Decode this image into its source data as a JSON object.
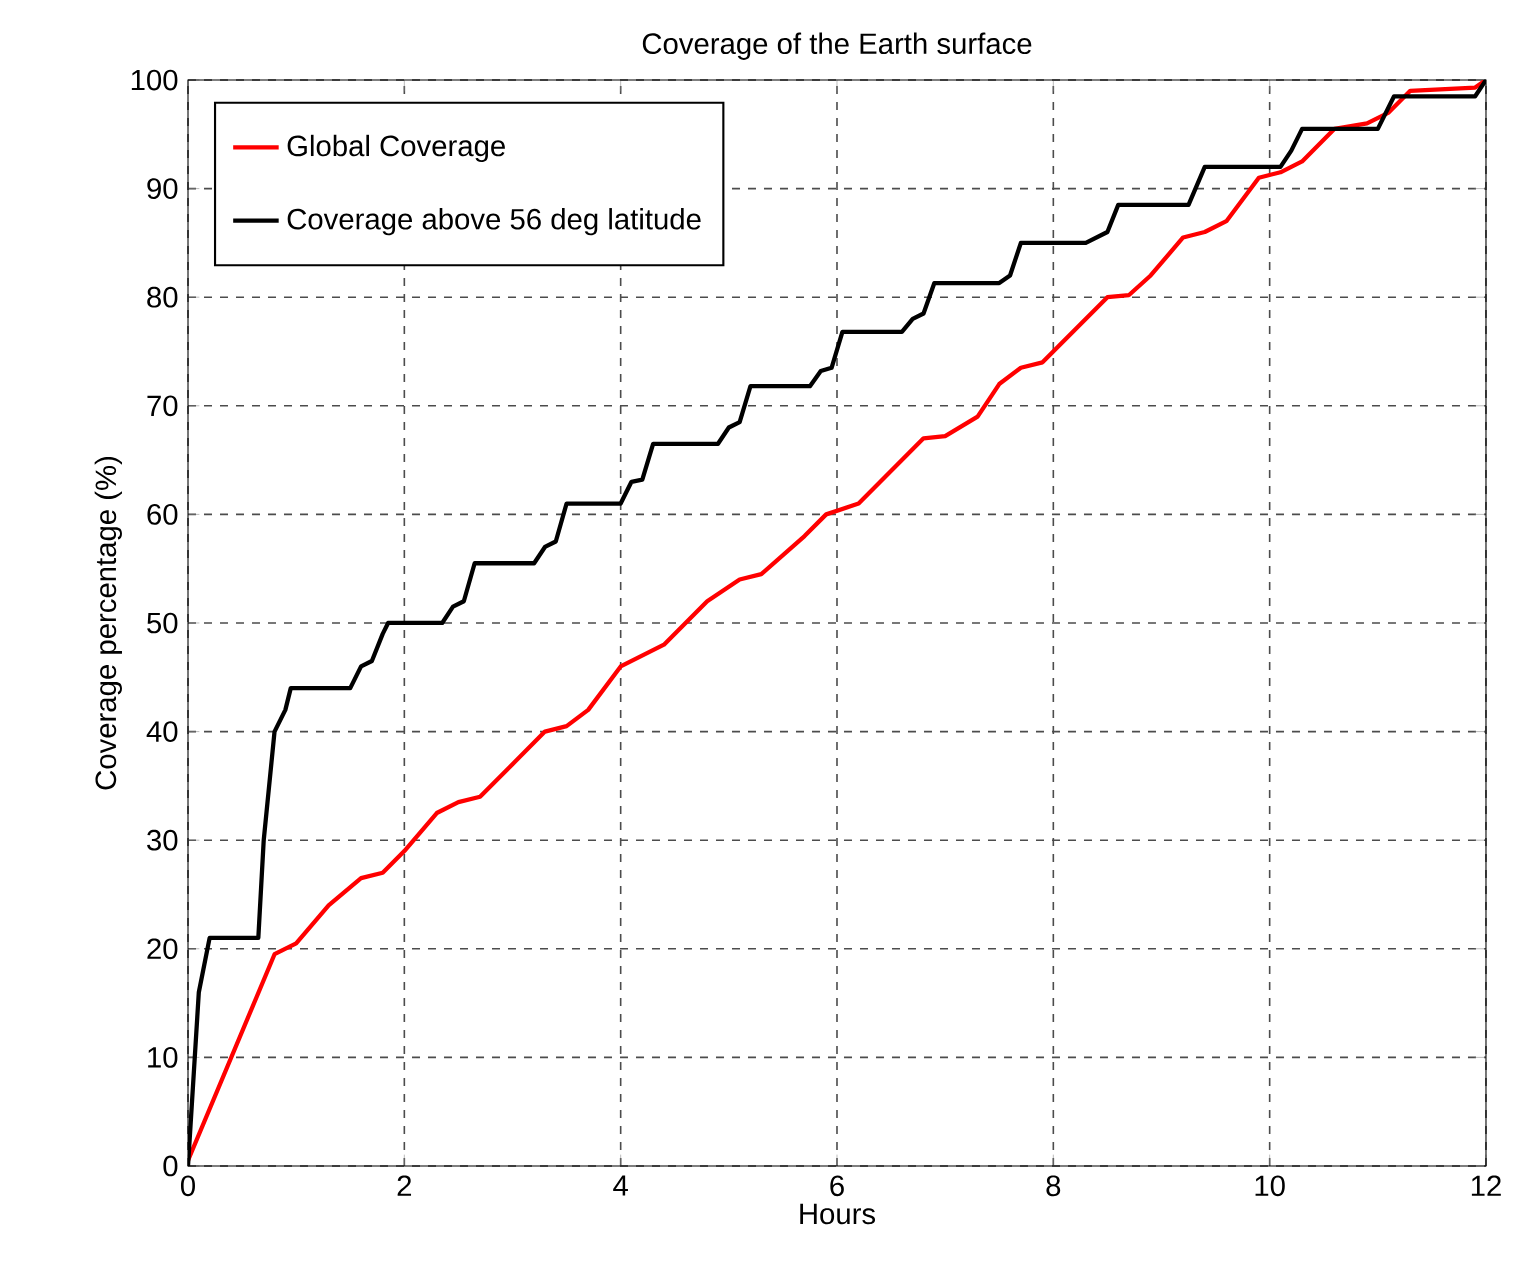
{
  "chart_data": {
    "type": "line",
    "title": "Coverage of the Earth surface",
    "xlabel": "Hours",
    "ylabel": "Coverage percentage (%)",
    "xlim": [
      0,
      12
    ],
    "ylim": [
      0,
      100
    ],
    "xticks": [
      0,
      2,
      4,
      6,
      8,
      10,
      12
    ],
    "yticks": [
      0,
      10,
      20,
      30,
      40,
      50,
      60,
      70,
      80,
      90,
      100
    ],
    "grid": true,
    "legend": "top left",
    "marker": "none",
    "line_style": "solid",
    "series": [
      {
        "name": "Global Coverage",
        "color": "#ff0000",
        "x": [
          0,
          0.8,
          1.0,
          1.3,
          1.6,
          1.8,
          2.0,
          2.3,
          2.5,
          2.7,
          3.0,
          3.3,
          3.5,
          3.7,
          4.0,
          4.2,
          4.4,
          4.8,
          5.1,
          5.3,
          5.7,
          5.9,
          6.2,
          6.5,
          6.8,
          7.0,
          7.3,
          7.5,
          7.7,
          7.9,
          8.2,
          8.5,
          8.7,
          8.9,
          9.2,
          9.4,
          9.6,
          9.9,
          10.1,
          10.3,
          10.6,
          10.9,
          11.1,
          11.3,
          11.9,
          12
        ],
        "values": [
          0.5,
          19.5,
          20.5,
          24,
          26.5,
          27,
          29,
          32.5,
          33.5,
          34,
          37,
          40,
          40.5,
          42,
          46,
          47,
          48,
          52,
          54,
          54.5,
          58,
          60,
          61,
          64,
          67,
          67.2,
          69,
          72,
          73.5,
          74,
          77,
          80,
          80.2,
          82,
          85.5,
          86,
          87,
          91,
          91.5,
          92.5,
          95.5,
          96,
          97,
          99,
          99.3,
          100
        ]
      },
      {
        "name": "Coverage above 56 deg latitude",
        "color": "#000000",
        "x": [
          0,
          0.1,
          0.2,
          0.65,
          0.7,
          0.8,
          0.9,
          0.95,
          1.5,
          1.6,
          1.7,
          1.8,
          1.85,
          2.35,
          2.45,
          2.55,
          2.65,
          3.2,
          3.3,
          3.4,
          3.5,
          4.0,
          4.1,
          4.2,
          4.3,
          4.9,
          5.0,
          5.1,
          5.2,
          5.75,
          5.85,
          5.95,
          6.05,
          6.6,
          6.7,
          6.8,
          6.9,
          7.5,
          7.6,
          7.7,
          8.3,
          8.5,
          8.6,
          9.25,
          9.4,
          10.1,
          10.2,
          10.3,
          11.0,
          11.15,
          11.9,
          12
        ],
        "values": [
          0,
          16,
          21,
          21,
          30,
          40,
          42,
          44,
          44,
          46,
          46.5,
          49,
          50,
          50,
          51.5,
          52,
          55.5,
          55.5,
          57,
          57.5,
          61,
          61,
          63,
          63.2,
          66.5,
          66.5,
          68,
          68.5,
          71.8,
          71.8,
          73.2,
          73.5,
          76.8,
          76.8,
          78,
          78.5,
          81.3,
          81.3,
          82,
          85,
          85,
          86,
          88.5,
          88.5,
          92,
          92,
          93.5,
          95.5,
          95.5,
          98.5,
          98.5,
          100
        ]
      }
    ]
  }
}
